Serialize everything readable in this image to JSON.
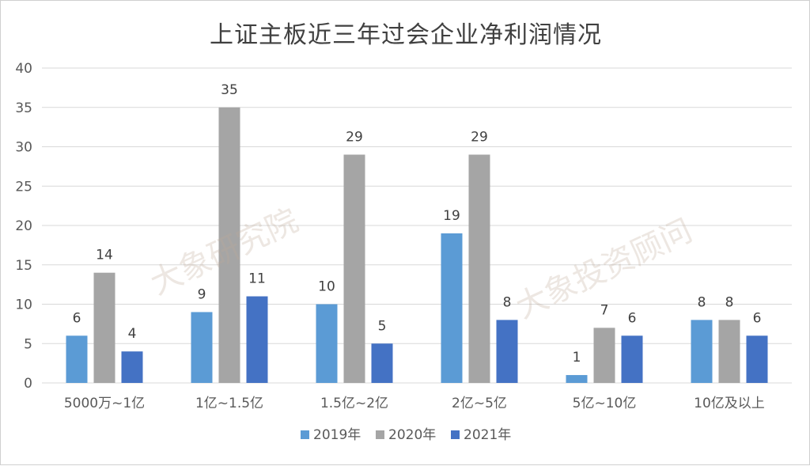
{
  "chart_data": {
    "type": "bar",
    "title": "上证主板近三年过会企业净利润情况",
    "xlabel": "",
    "ylabel": "",
    "ylim": [
      0,
      40
    ],
    "yticks": [
      "0",
      "5",
      "10",
      "15",
      "20",
      "25",
      "30",
      "35",
      "40"
    ],
    "categories": [
      "5000万~1亿",
      "1亿~1.5亿",
      "1.5亿~2亿",
      "2亿~5亿",
      "5亿~10亿",
      "10亿及以上"
    ],
    "series": [
      {
        "name": "2019年",
        "color": "#5b9bd5",
        "values": [
          6,
          9,
          10,
          19,
          1,
          8
        ]
      },
      {
        "name": "2020年",
        "color": "#a5a5a5",
        "values": [
          14,
          35,
          29,
          29,
          7,
          8
        ]
      },
      {
        "name": "2021年",
        "color": "#4472c4",
        "values": [
          4,
          11,
          5,
          8,
          6,
          6
        ]
      }
    ],
    "grid": true,
    "legend_position": "bottom",
    "data_labels": true
  },
  "watermarks": [
    "大象研究院",
    "大象投资顾问"
  ]
}
